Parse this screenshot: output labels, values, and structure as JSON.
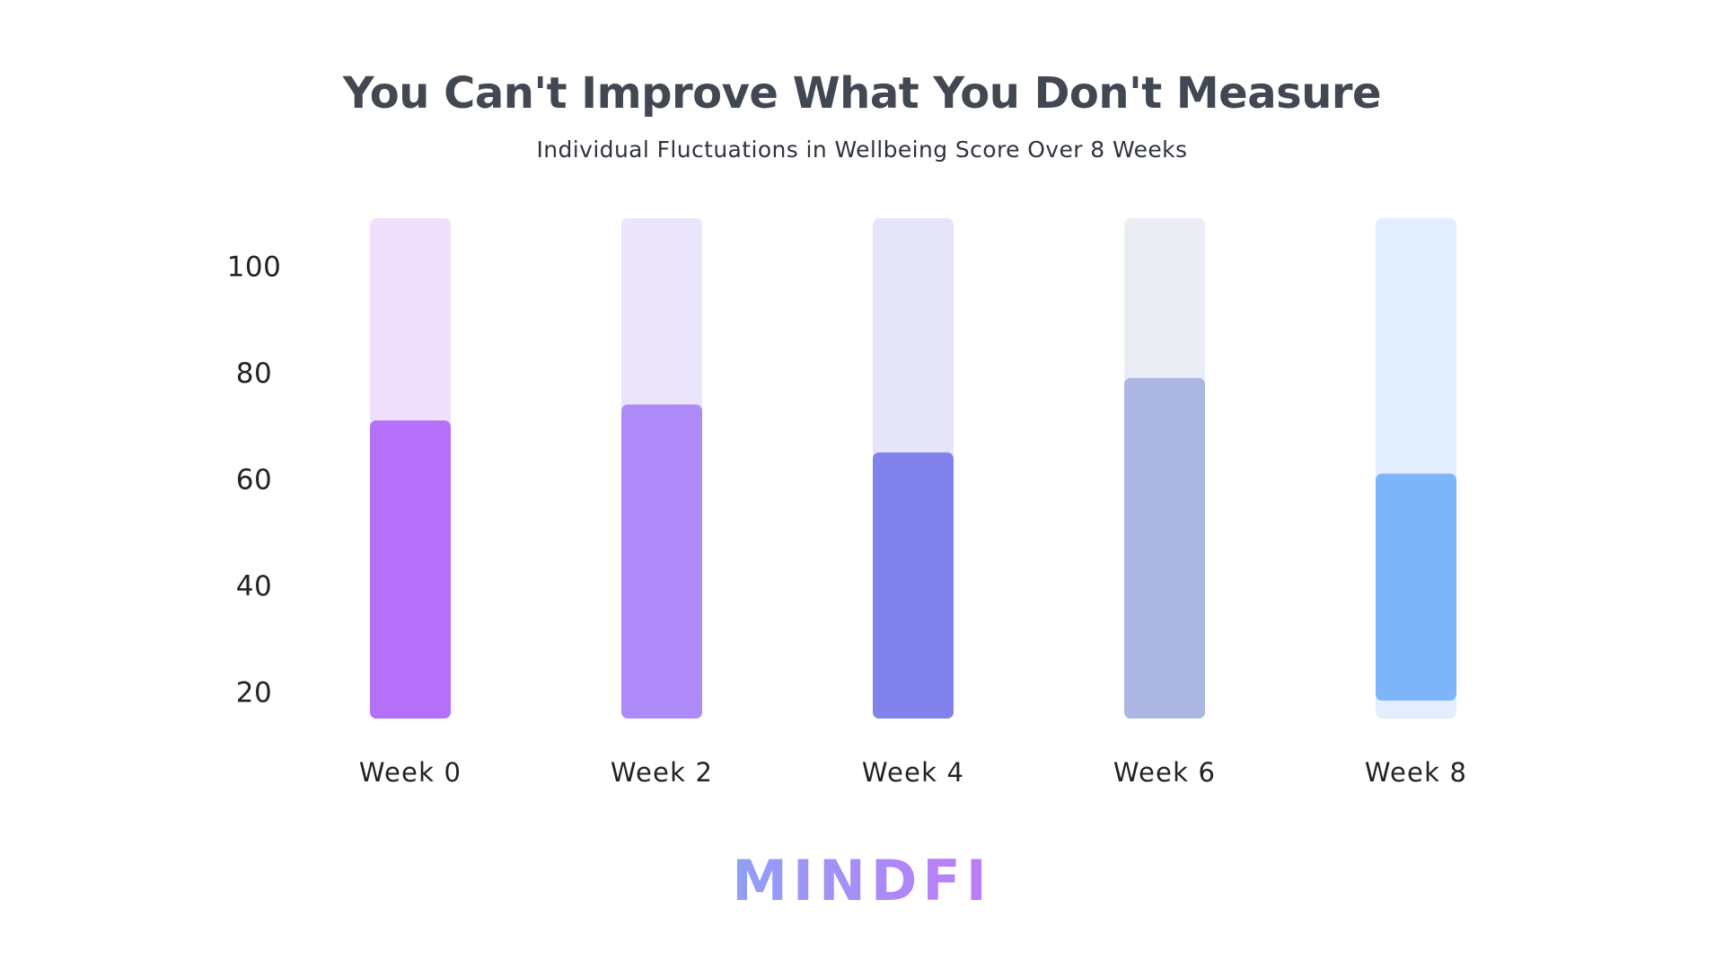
{
  "chart_data": {
    "type": "bar",
    "title": "You Can't Improve What You Don't Measure",
    "subtitle": "Individual Fluctuations in Wellbeing Score Over 8 Weeks",
    "categories": [
      "Week 0",
      "Week 2",
      "Week 4",
      "Week 6",
      "Week 8"
    ],
    "series": [
      {
        "values": [
          71,
          74,
          65,
          79,
          61
        ],
        "colors": [
          "#b570fa",
          "#ad8af7",
          "#8282ec",
          "#abb6e2",
          "#7db4fa"
        ],
        "track_colors": [
          "#f0e0fc",
          "#ebe5fb",
          "#e5e4f8",
          "#ebedf4",
          "#e2edfd"
        ]
      }
    ],
    "ylim": [
      15,
      109
    ],
    "yticks": [
      20,
      40,
      60,
      80,
      100
    ],
    "ytick_labels": [
      "20",
      "40",
      "60",
      "80",
      "100"
    ],
    "xlabel": "",
    "ylabel": "",
    "grid": false,
    "legend": "none"
  },
  "brand": {
    "logo_text": "MINDFI",
    "gradient_start": "#8fa0f5",
    "gradient_end": "#c07af8"
  }
}
